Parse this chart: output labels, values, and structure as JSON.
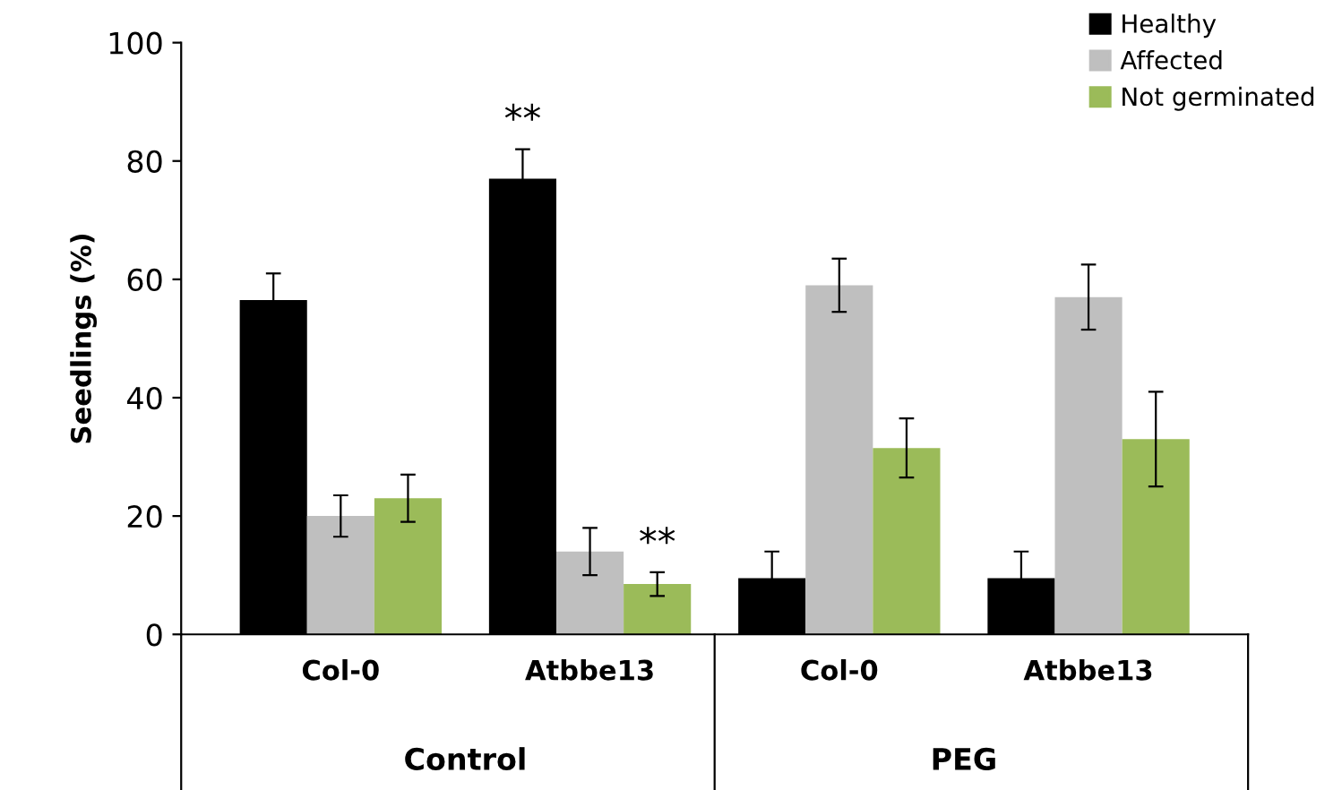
{
  "chart_data": {
    "type": "bar",
    "ylabel": "Seedlings (%)",
    "categories": [
      "Col-0",
      "Atbbe13",
      "Col-0",
      "Atbbe13"
    ],
    "series": [
      {
        "name": "Healthy",
        "color": "#000000",
        "values": [
          56.5,
          77,
          9.5,
          9.5
        ],
        "errors": [
          4.5,
          5,
          4.5,
          4.5
        ]
      },
      {
        "name": "Affected",
        "color": "#bfbfbf",
        "values": [
          20,
          14,
          59,
          57
        ],
        "errors": [
          3.5,
          4,
          4.5,
          5.5
        ]
      },
      {
        "name": "Not germinated",
        "color": "#9bbb59",
        "values": [
          23,
          8.5,
          31.5,
          33
        ],
        "errors": [
          4,
          2,
          5,
          8
        ]
      }
    ],
    "ylim": [
      0,
      100
    ],
    "yticks": [
      0,
      20,
      40,
      60,
      80,
      100
    ],
    "grid": false,
    "legend": "top right",
    "annotations": [
      "Control",
      "PEG",
      "**",
      "**"
    ]
  }
}
